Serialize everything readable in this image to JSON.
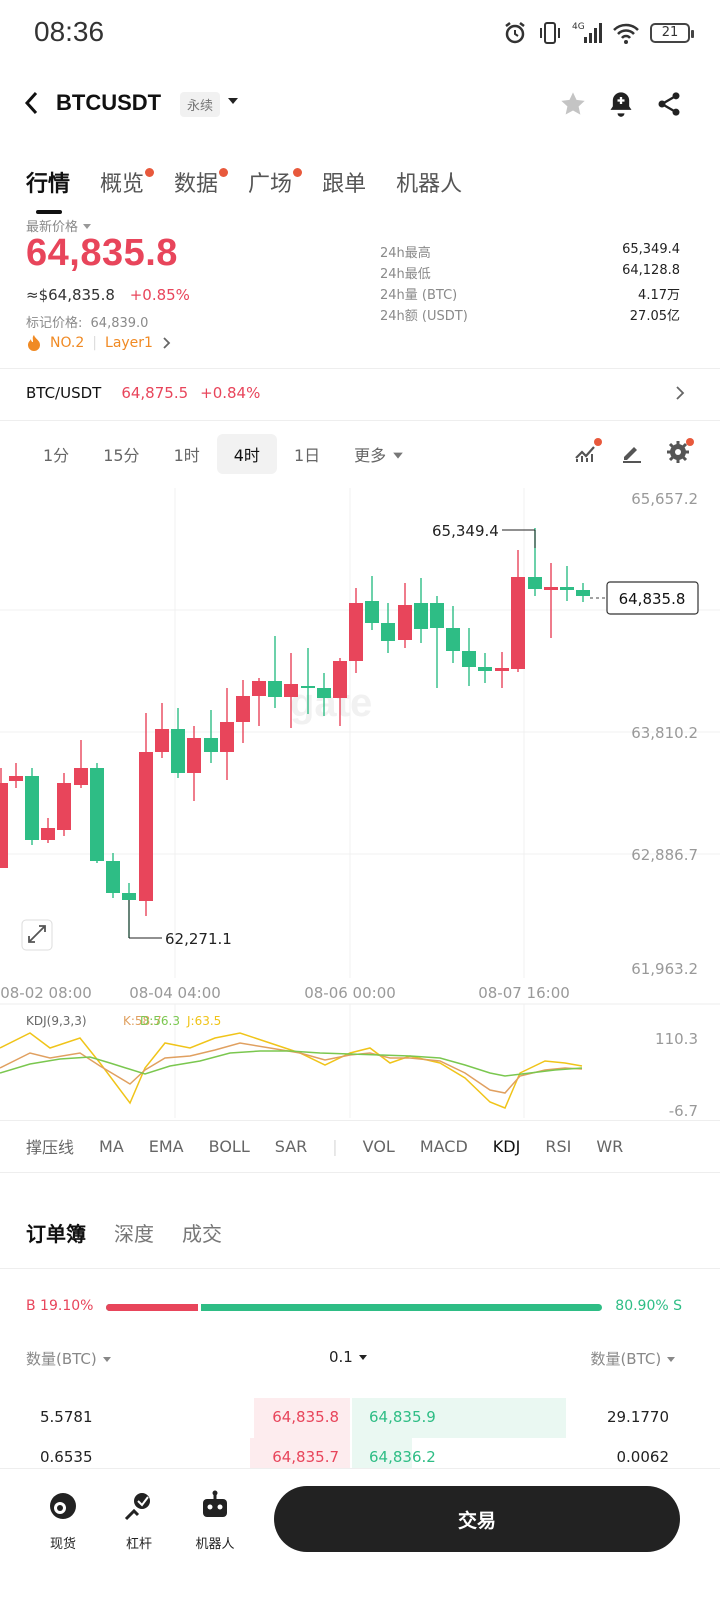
{
  "status_bar": {
    "time": "08:36",
    "battery": "21"
  },
  "header": {
    "pair": "BTCUSDT",
    "contract_tag": "永续"
  },
  "tabs": [
    {
      "label": "行情",
      "active": true,
      "dot": false
    },
    {
      "label": "概览",
      "active": false,
      "dot": true
    },
    {
      "label": "数据",
      "active": false,
      "dot": true
    },
    {
      "label": "广场",
      "active": false,
      "dot": true
    },
    {
      "label": "跟单",
      "active": false,
      "dot": false
    },
    {
      "label": "机器人",
      "active": false,
      "dot": false
    }
  ],
  "price": {
    "latest_label": "最新价格",
    "last": "64,835.8",
    "usd_value": "≈$64,835.8",
    "change": "+0.85%",
    "mark_label": "标记价格:",
    "mark_value": "64,839.0",
    "rank": "NO.2",
    "sector": "Layer1"
  },
  "stats": [
    {
      "label": "24h最高",
      "value": "65,349.4"
    },
    {
      "label": "24h最低",
      "value": "64,128.8"
    },
    {
      "label": "24h量 (BTC)",
      "value": "4.17万"
    },
    {
      "label": "24h额 (USDT)",
      "value": "27.05亿"
    }
  ],
  "spot": {
    "pair": "BTC/USDT",
    "price": "64,875.5",
    "change": "+0.84%"
  },
  "intervals": [
    "1分",
    "15分",
    "1时",
    "4时",
    "1日",
    "更多"
  ],
  "active_interval": "4时",
  "chart": {
    "y_ticks": [
      "65,657.2",
      "63,810.2",
      "62,886.7",
      "61,963.2"
    ],
    "x_ticks": [
      "08-02 08:00",
      "08-04 04:00",
      "08-06 00:00",
      "08-07 16:00"
    ],
    "high_annotation": "65,349.4",
    "low_annotation": "62,271.1",
    "current_price_tag": "64,835.8",
    "watermark": "gate"
  },
  "kdj": {
    "label": "KDJ(9,3,3)",
    "k": "K:58.7",
    "d": "D:56.3",
    "j": "J:63.5",
    "axis_top": "110.3",
    "axis_bottom": "-6.7",
    "colors": {
      "k": "#e0a060",
      "d": "#7ac74f",
      "j": "#f0c419"
    }
  },
  "indicators": [
    "撑压线",
    "MA",
    "EMA",
    "BOLL",
    "SAR",
    "VOL",
    "MACD",
    "KDJ",
    "RSI",
    "WR"
  ],
  "active_indicator": "KDJ",
  "orderbook": {
    "tabs": [
      "订单簿",
      "深度",
      "成交"
    ],
    "buy_ratio": "B 19.10%",
    "sell_ratio": "80.90% S",
    "buy_fraction": 0.191,
    "col_left": "数量(BTC)",
    "precision": "0.1",
    "col_right": "数量(BTC)",
    "rows": [
      {
        "bid_qty": "5.5781",
        "bid_price": "64,835.8",
        "ask_price": "64,835.9",
        "ask_qty": "29.1770"
      },
      {
        "bid_qty": "0.6535",
        "bid_price": "64,835.7",
        "ask_price": "64,836.2",
        "ask_qty": "0.0062"
      }
    ]
  },
  "bottom_nav": {
    "spot": "现货",
    "leverage": "杠杆",
    "bot": "机器人",
    "trade": "交易"
  },
  "colors": {
    "up": "#2ebd85",
    "down": "#e8455b",
    "accent_orange": "#f08a24"
  }
}
